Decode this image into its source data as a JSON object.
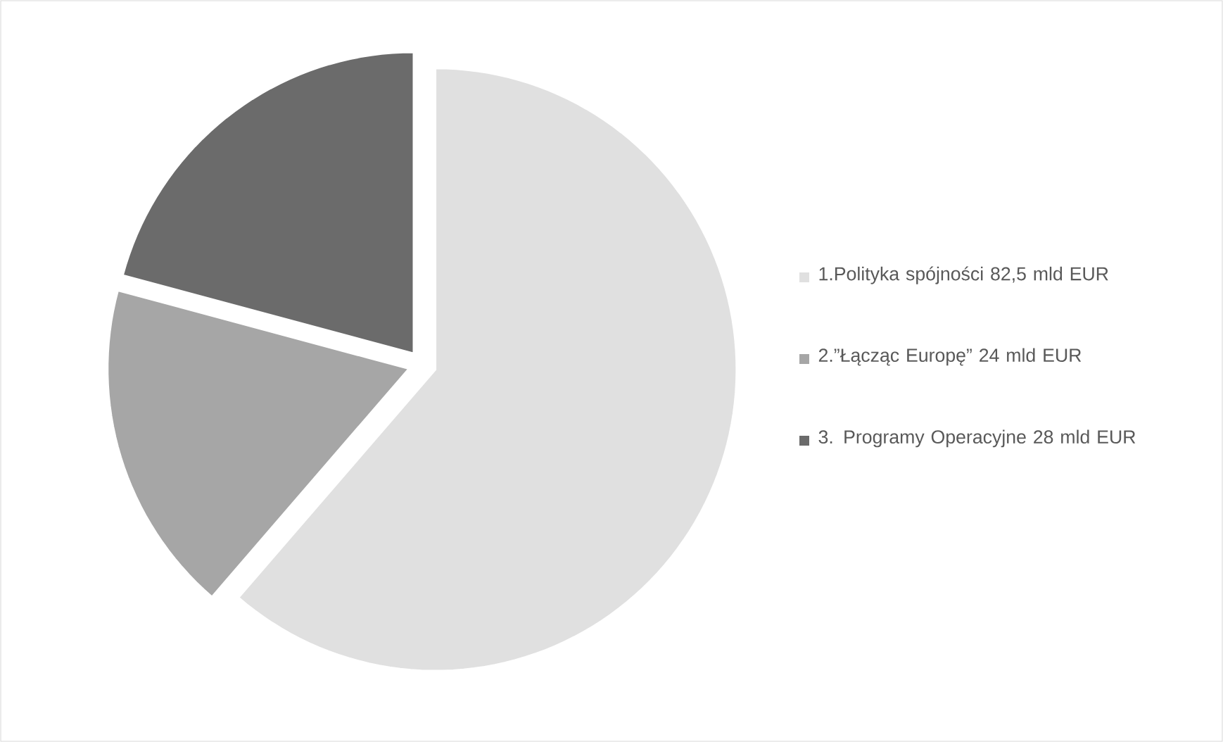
{
  "chart_data": {
    "type": "pie",
    "categories": [
      "1.Polityka spójności 82,5 mld EUR",
      "2.”Łącząc Europę” 24 mld EUR",
      "3. Programy Operacyjne 28 mld EUR"
    ],
    "values": [
      82.5,
      24,
      28
    ],
    "colors": [
      "#e0e0e0",
      "#a6a6a6",
      "#6b6b6b"
    ],
    "legend": "right"
  }
}
